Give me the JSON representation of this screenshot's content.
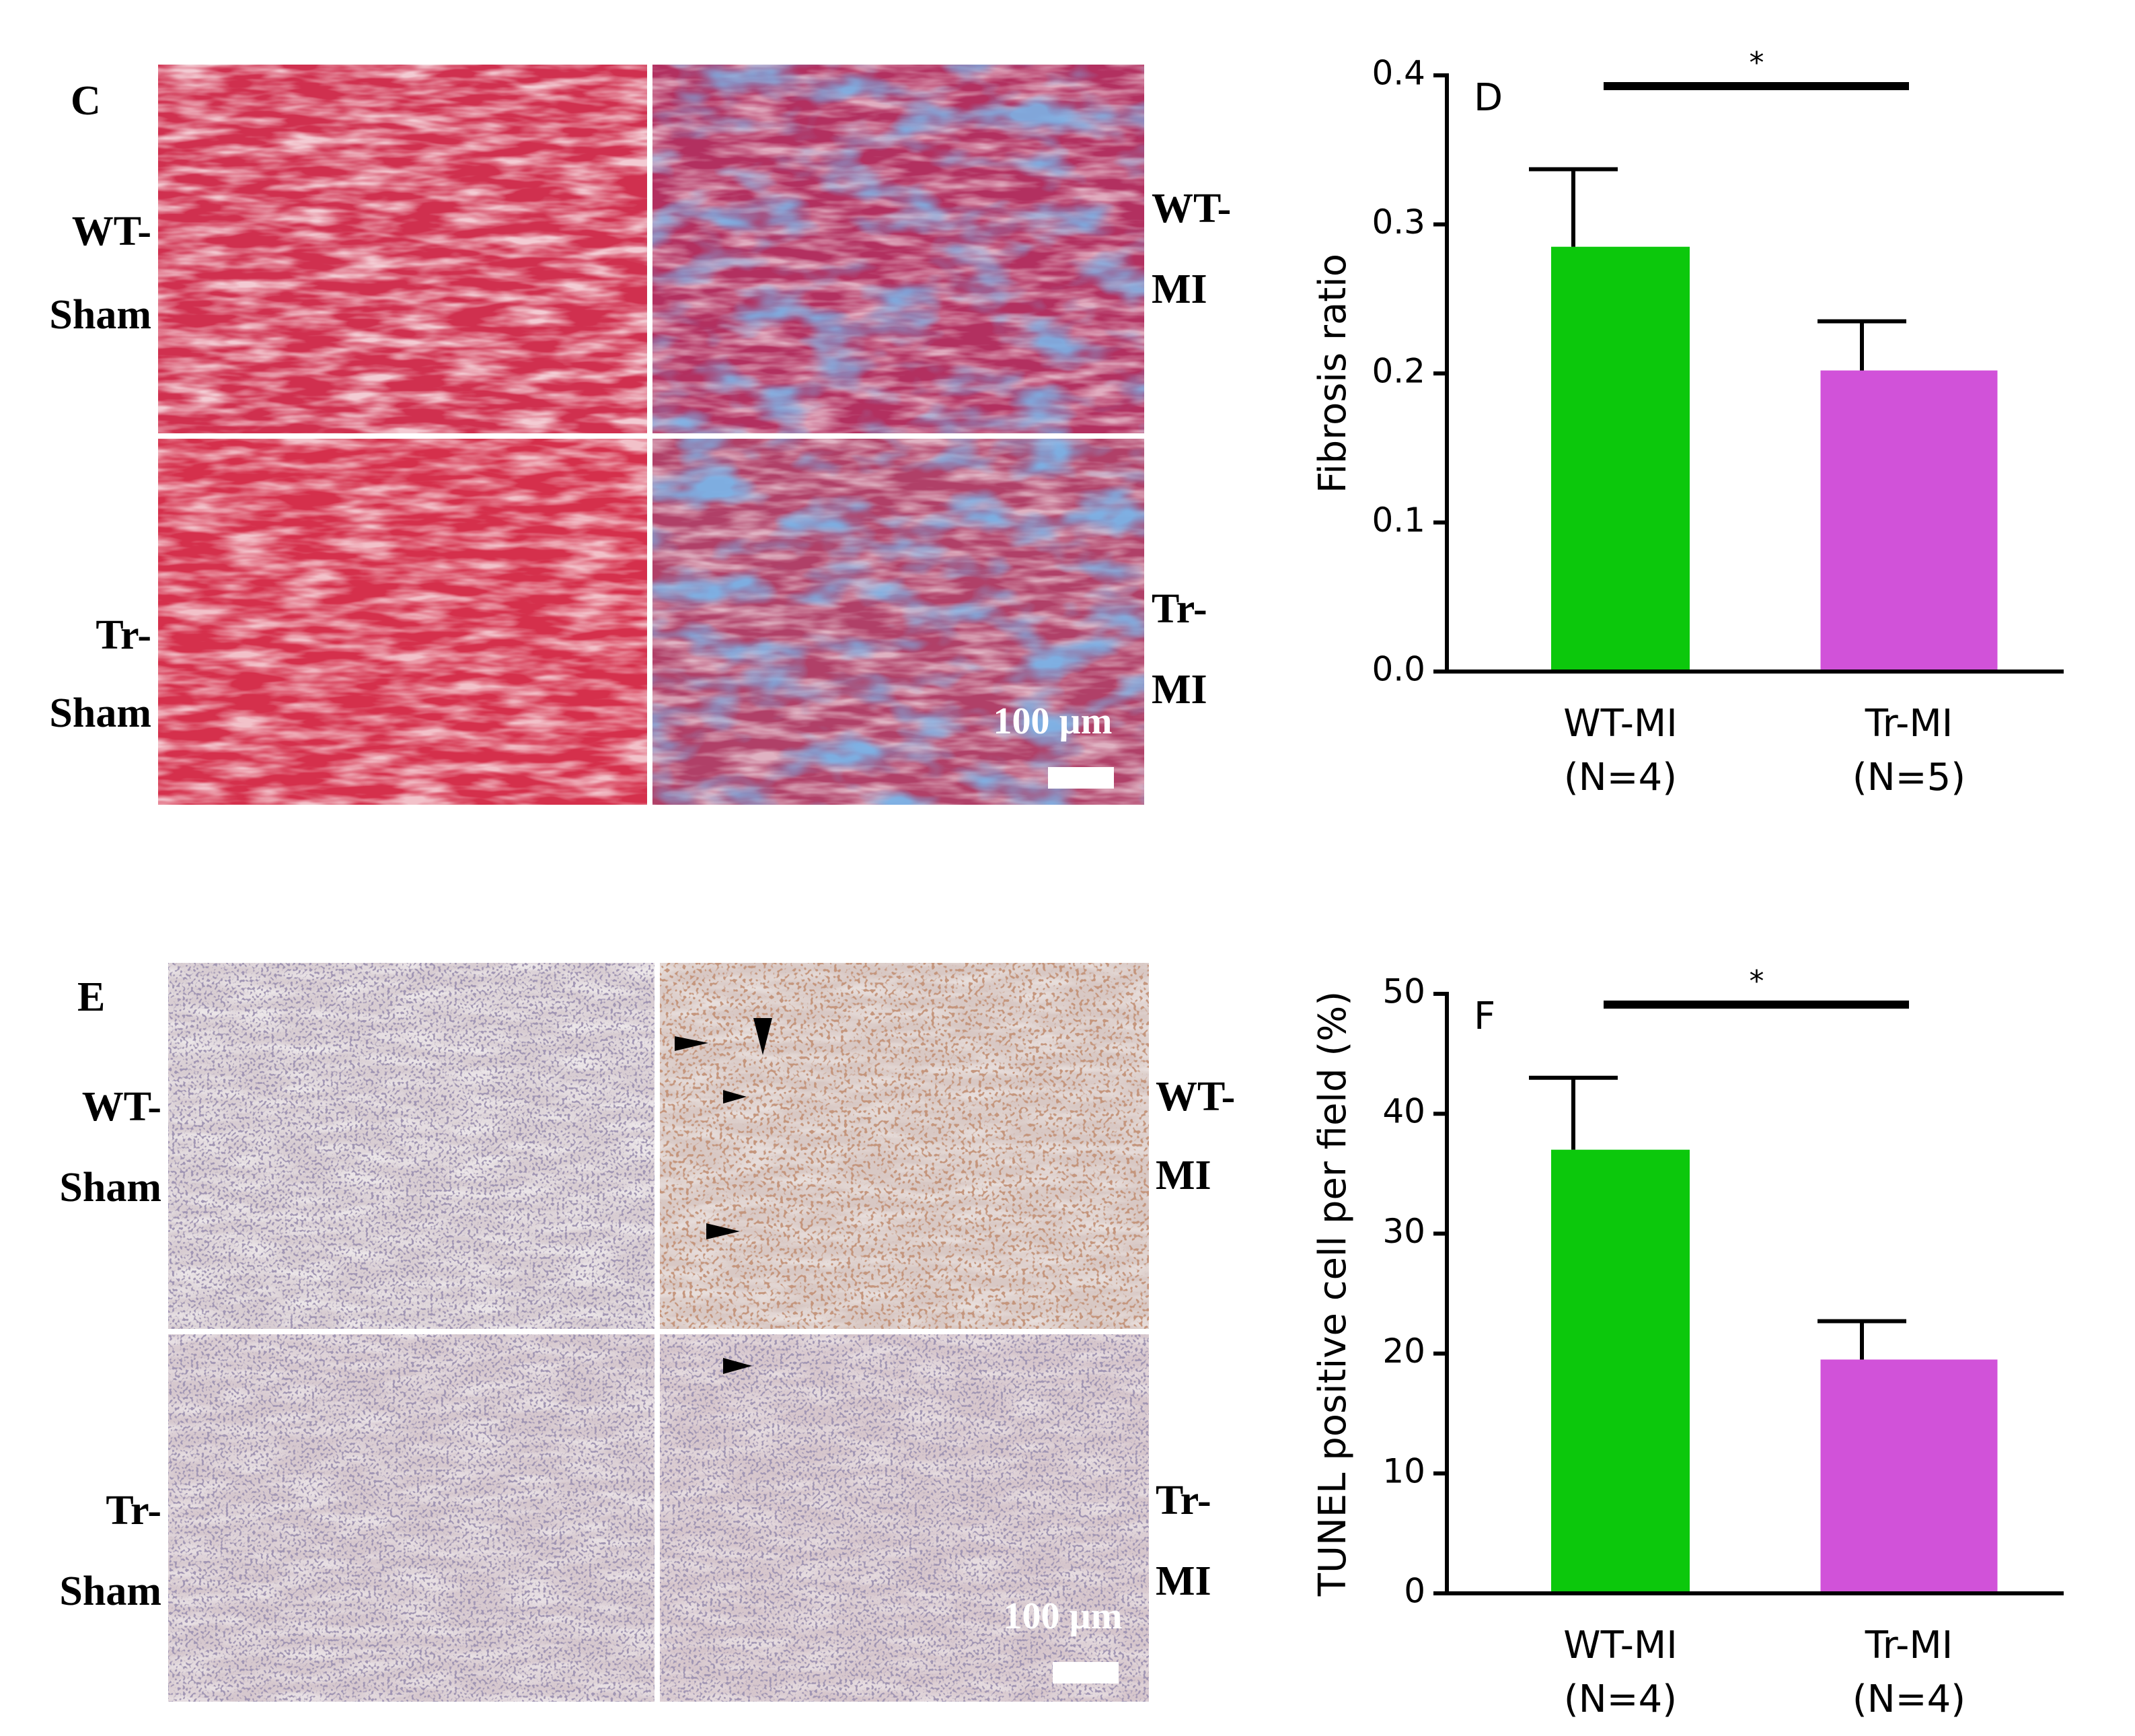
{
  "figure": {
    "panel_c": {
      "label": "C",
      "left_labels": [
        [
          "WT-",
          "Sham"
        ],
        [
          "Tr-",
          "Sham"
        ]
      ],
      "right_labels": [
        [
          "WT-",
          "MI"
        ],
        [
          "Tr-",
          "MI"
        ]
      ],
      "scale_bar": "100 µm"
    },
    "panel_e": {
      "label": "E",
      "left_labels": [
        [
          "WT-",
          "Sham"
        ],
        [
          "Tr-",
          "Sham"
        ]
      ],
      "right_labels": [
        [
          "WT-",
          "MI"
        ],
        [
          "Tr-",
          "MI"
        ]
      ],
      "scale_bar": "100 µm"
    }
  },
  "chart_data": [
    {
      "type": "bar",
      "panel_label": "D",
      "y_label": "Fibrosis ratio",
      "categories": [
        "WT-MI",
        "Tr-MI"
      ],
      "sample_sizes": [
        "(N=4)",
        "(N=5)"
      ],
      "values": [
        0.285,
        0.202
      ],
      "errors": [
        0.052,
        0.033
      ],
      "colors": [
        "#0cc80c",
        "#d152d9"
      ],
      "ylim": [
        0,
        0.4
      ],
      "yticks": [
        {
          "value": 0,
          "label": "0.0"
        },
        0.1,
        0.2,
        0.3,
        0.4
      ],
      "significance": "*"
    },
    {
      "type": "bar",
      "panel_label": "F",
      "y_label": "TUNEL positive cell per field (%)",
      "categories": [
        "WT-MI",
        "Tr-MI"
      ],
      "sample_sizes": [
        "(N=4)",
        "(N=4)"
      ],
      "values": [
        37,
        19.5
      ],
      "errors": [
        6,
        3.2
      ],
      "colors": [
        "#0cc80c",
        "#d152d9"
      ],
      "ylim": [
        0,
        50
      ],
      "yticks": [
        0,
        10,
        20,
        30,
        40,
        50
      ],
      "significance": "*"
    }
  ]
}
